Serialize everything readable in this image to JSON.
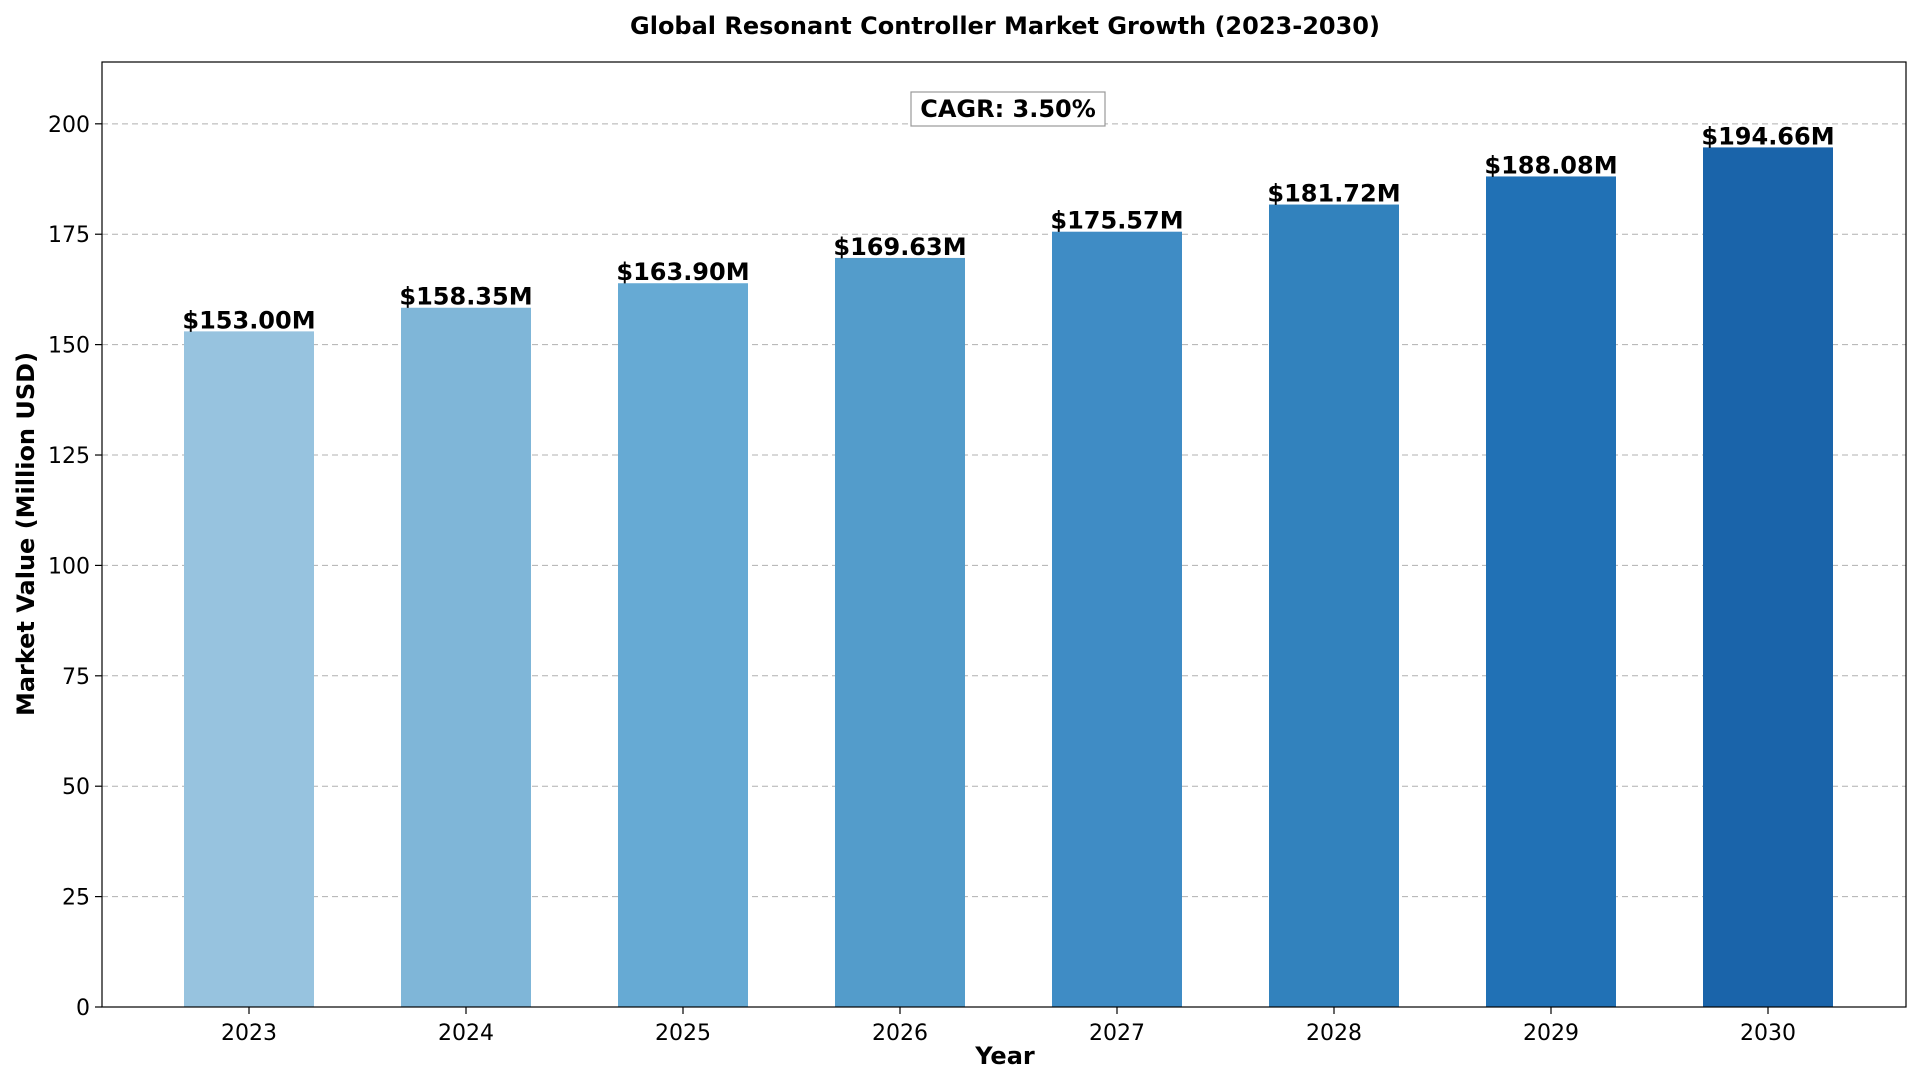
{
  "chart_data": {
    "type": "bar",
    "title": "Global Resonant Controller Market Growth (2023-2030)",
    "xlabel": "Year",
    "ylabel": "Market Value (Million USD)",
    "categories": [
      "2023",
      "2024",
      "2025",
      "2026",
      "2027",
      "2028",
      "2029",
      "2030"
    ],
    "values": [
      153.0,
      158.35,
      163.9,
      169.63,
      175.57,
      181.72,
      188.08,
      194.66
    ],
    "value_labels": [
      "$153.00M",
      "$158.35M",
      "$163.90M",
      "$169.63M",
      "$175.57M",
      "$181.72M",
      "$188.08M",
      "$194.66M"
    ],
    "bar_colors": [
      "#97c3df",
      "#7fb6d8",
      "#66aad4",
      "#539ccb",
      "#3f8cc5",
      "#3282bd",
      "#2171b5",
      "#1a64aa"
    ],
    "ylim": [
      0,
      214
    ],
    "yticks": [
      0,
      25,
      50,
      75,
      100,
      125,
      150,
      175,
      200
    ],
    "grid": "y, dashed",
    "annotation": "CAGR: 3.50%"
  }
}
